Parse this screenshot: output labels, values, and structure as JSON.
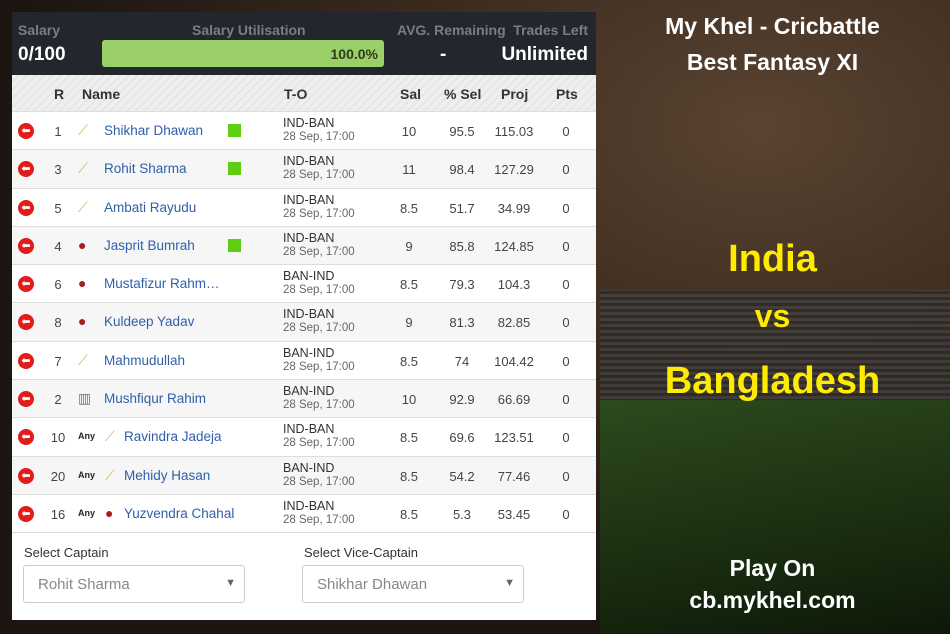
{
  "header": {
    "salary_label": "Salary",
    "salary_value": "0/100",
    "util_label": "Salary Utilisation",
    "util_value": "100.0%",
    "util_fraction": 1.0,
    "avg_label": "AVG. Remaining",
    "avg_value": "-",
    "trades_label": "Trades Left",
    "trades_value": "Unlimited"
  },
  "columns": {
    "r": "R",
    "name": "Name",
    "to": "T-O",
    "sal": "Sal",
    "sel": "% Sel",
    "proj": "Proj",
    "pts": "Pts"
  },
  "players": [
    {
      "r": "1",
      "tag": "",
      "role": "bat",
      "name": "Shikhar Dhawan",
      "green": true,
      "to": "IND-BAN",
      "time": "28 Sep, 17:00",
      "sal": "10",
      "sel": "95.5",
      "proj": "115.03",
      "pts": "0"
    },
    {
      "r": "3",
      "tag": "",
      "role": "bat",
      "name": "Rohit Sharma",
      "green": true,
      "to": "IND-BAN",
      "time": "28 Sep, 17:00",
      "sal": "11",
      "sel": "98.4",
      "proj": "127.29",
      "pts": "0"
    },
    {
      "r": "5",
      "tag": "",
      "role": "bat",
      "name": "Ambati Rayudu",
      "green": false,
      "to": "IND-BAN",
      "time": "28 Sep, 17:00",
      "sal": "8.5",
      "sel": "51.7",
      "proj": "34.99",
      "pts": "0"
    },
    {
      "r": "4",
      "tag": "",
      "role": "bowl",
      "name": "Jasprit Bumrah",
      "green": true,
      "to": "IND-BAN",
      "time": "28 Sep, 17:00",
      "sal": "9",
      "sel": "85.8",
      "proj": "124.85",
      "pts": "0"
    },
    {
      "r": "6",
      "tag": "",
      "role": "bowl",
      "name": "Mustafizur Rahm…",
      "green": false,
      "to": "BAN-IND",
      "time": "28 Sep, 17:00",
      "sal": "8.5",
      "sel": "79.3",
      "proj": "104.3",
      "pts": "0"
    },
    {
      "r": "8",
      "tag": "",
      "role": "bowl",
      "name": "Kuldeep Yadav",
      "green": false,
      "to": "IND-BAN",
      "time": "28 Sep, 17:00",
      "sal": "9",
      "sel": "81.3",
      "proj": "82.85",
      "pts": "0"
    },
    {
      "r": "7",
      "tag": "",
      "role": "ar",
      "name": "Mahmudullah",
      "green": false,
      "to": "BAN-IND",
      "time": "28 Sep, 17:00",
      "sal": "8.5",
      "sel": "74",
      "proj": "104.42",
      "pts": "0"
    },
    {
      "r": "2",
      "tag": "",
      "role": "wk",
      "name": "Mushfiqur Rahim",
      "green": false,
      "to": "BAN-IND",
      "time": "28 Sep, 17:00",
      "sal": "10",
      "sel": "92.9",
      "proj": "66.69",
      "pts": "0"
    },
    {
      "r": "10",
      "tag": "Any",
      "role": "ar",
      "name": "Ravindra Jadeja",
      "green": false,
      "to": "IND-BAN",
      "time": "28 Sep, 17:00",
      "sal": "8.5",
      "sel": "69.6",
      "proj": "123.51",
      "pts": "0"
    },
    {
      "r": "20",
      "tag": "Any",
      "role": "ar",
      "name": "Mehidy Hasan",
      "green": false,
      "to": "BAN-IND",
      "time": "28 Sep, 17:00",
      "sal": "8.5",
      "sel": "54.2",
      "proj": "77.46",
      "pts": "0"
    },
    {
      "r": "16",
      "tag": "Any",
      "role": "bowl",
      "name": "Yuzvendra Chahal",
      "green": false,
      "to": "IND-BAN",
      "time": "28 Sep, 17:00",
      "sal": "8.5",
      "sel": "5.3",
      "proj": "53.45",
      "pts": "0"
    }
  ],
  "captain": {
    "label": "Select Captain",
    "value": "Rohit Sharma"
  },
  "vice_captain": {
    "label": "Select Vice-Captain",
    "value": "Shikhar Dhawan"
  },
  "promo": {
    "title1": "My Khel - Cricbattle",
    "title2": "Best Fantasy XI",
    "team1": "India",
    "vs": "vs",
    "team2": "Bangladesh",
    "play": "Play On",
    "url": "cb.mykhel.com"
  }
}
